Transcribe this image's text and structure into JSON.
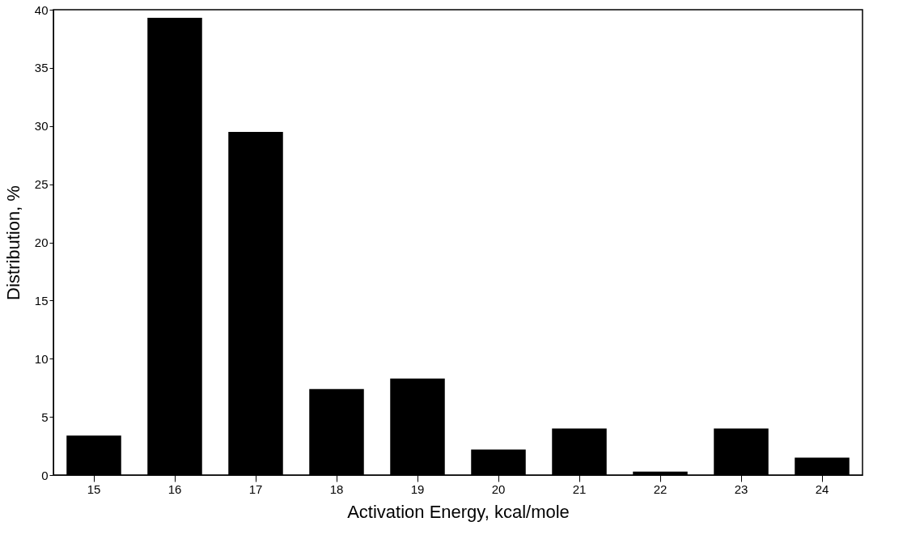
{
  "chart_data": {
    "type": "bar",
    "xlabel": "Activation Energy, kcal/mole",
    "ylabel": "Distribution, %",
    "categories": [
      "15",
      "16",
      "17",
      "18",
      "19",
      "20",
      "21",
      "22",
      "23",
      "24"
    ],
    "values": [
      3.4,
      39.3,
      29.5,
      7.4,
      8.3,
      2.2,
      4.0,
      0.3,
      4.0,
      1.5
    ],
    "color": "#000000",
    "ylim": [
      0,
      40
    ],
    "yticks": [
      0,
      5,
      10,
      15,
      20,
      25,
      30,
      35,
      40
    ],
    "grid": false
  }
}
